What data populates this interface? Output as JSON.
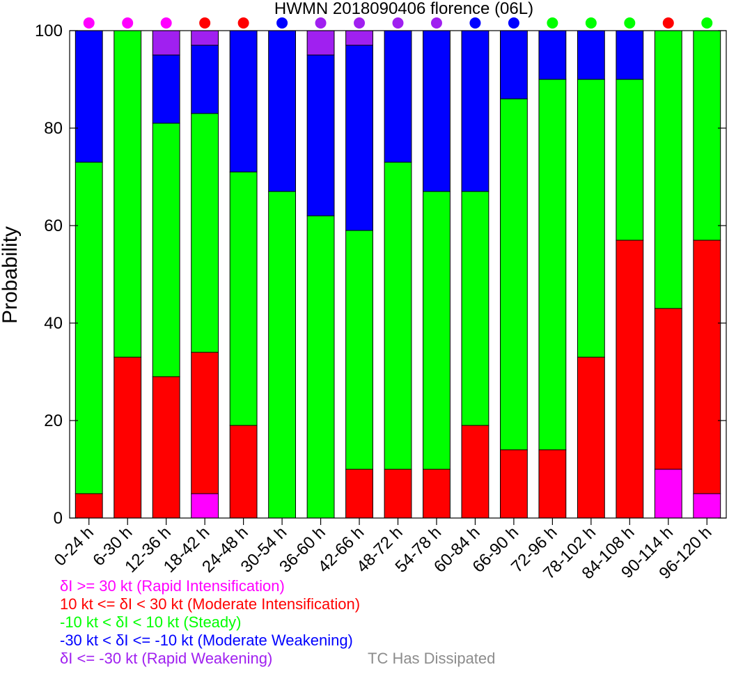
{
  "chart_data": {
    "type": "bar",
    "stacked": true,
    "title": "HWMN 2018090406 florence (06L)",
    "ylabel": "Probability",
    "xlabel": "",
    "ylim": [
      0,
      100
    ],
    "yticks": [
      0,
      20,
      40,
      60,
      80,
      100
    ],
    "grid": false,
    "categories": [
      "0-24 h",
      "6-30 h",
      "12-36 h",
      "18-42 h",
      "24-48 h",
      "30-54 h",
      "36-60 h",
      "42-66 h",
      "48-72 h",
      "54-78 h",
      "60-84 h",
      "66-90 h",
      "72-96 h",
      "78-102 h",
      "84-108 h",
      "90-114 h",
      "96-120 h"
    ],
    "series": [
      {
        "name": "δI >= 30 kt (Rapid Intensification)",
        "color": "#ff00ff",
        "values": [
          0,
          0,
          0,
          5,
          0,
          0,
          0,
          0,
          0,
          0,
          0,
          0,
          0,
          0,
          0,
          10,
          5
        ]
      },
      {
        "name": "10 kt <= δI < 30 kt (Moderate Intensification)",
        "color": "#ff0000",
        "values": [
          5,
          33,
          29,
          29,
          19,
          0,
          0,
          10,
          10,
          10,
          19,
          14,
          14,
          33,
          57,
          33,
          52
        ]
      },
      {
        "name": "-10 kt < δI < 10 kt (Steady)",
        "color": "#00ff00",
        "values": [
          68,
          67,
          52,
          49,
          52,
          67,
          62,
          49,
          63,
          57,
          48,
          72,
          76,
          57,
          33,
          57,
          43
        ]
      },
      {
        "name": "-30 kt < δI <= -10 kt (Moderate Weakening)",
        "color": "#0000ff",
        "values": [
          27,
          0,
          14,
          14,
          29,
          33,
          33,
          38,
          27,
          33,
          33,
          14,
          10,
          10,
          10,
          0,
          0
        ]
      },
      {
        "name": "δI <= -30 kt (Rapid Weakening)",
        "color": "#a020f0",
        "values": [
          0,
          0,
          5,
          3,
          0,
          0,
          5,
          3,
          0,
          0,
          0,
          0,
          0,
          0,
          0,
          0,
          0
        ]
      }
    ],
    "dots": [
      "#ff00ff",
      "#ff00ff",
      "#ff00ff",
      "#ff0000",
      "#ff0000",
      "#0000ff",
      "#a020f0",
      "#a020f0",
      "#a020f0",
      "#a020f0",
      "#0000ff",
      "#0000ff",
      "#00ff00",
      "#00ff00",
      "#00ff00",
      "#ff0000",
      "#00ff00"
    ],
    "legend_position": "bottom-left",
    "legend_extra": {
      "label": "TC Has Dissipated",
      "color": "#8c8c8c"
    }
  }
}
